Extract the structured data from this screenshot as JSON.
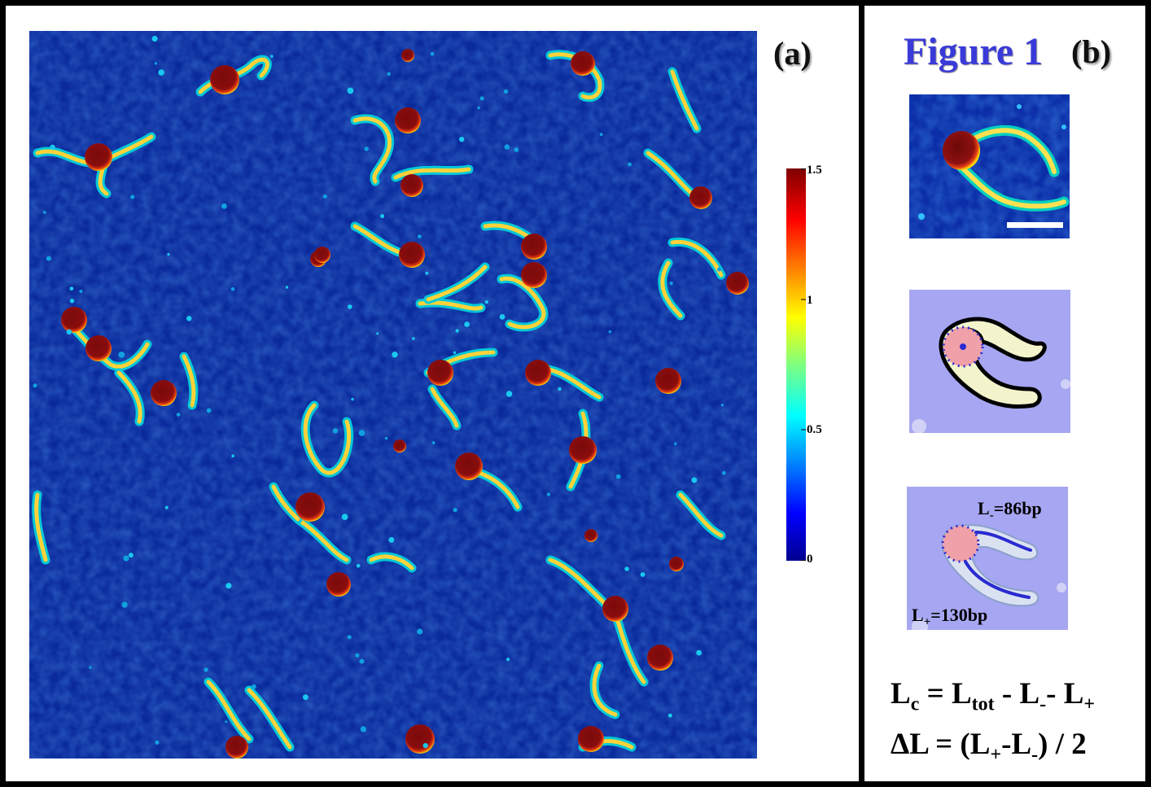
{
  "figure_title": "Figure 1",
  "panel_a": {
    "label": "(a)",
    "colorbar": {
      "ticks": [
        "1.5",
        "1",
        "0.5",
        "0"
      ]
    }
  },
  "panel_b": {
    "label": "(b)",
    "length_labels": {
      "l_minus": {
        "main": "L",
        "sub": "-",
        "value": "=86bp"
      },
      "l_plus": {
        "main": "L",
        "sub": "+",
        "value": "=130bp"
      }
    },
    "equation_1": {
      "lhs": "L",
      "lhs_sub": "c",
      "eq": " = ",
      "t1": "L",
      "t1_sub": "tot",
      "minus1": " - ",
      "t2": "L",
      "t2_sub": "-",
      "minus2": "- ",
      "t3": "L",
      "t3_sub": "+"
    },
    "equation_2": {
      "lhs": "ΔL",
      "eq": " = (",
      "t1": "L",
      "t1_sub": "+",
      "minus": "-",
      "t2": "L",
      "t2_sub": "-",
      "tail": ") / 2"
    }
  },
  "colors": {
    "title_blue": "#3a3ad8",
    "afm_background": "#0a2a9c",
    "colorbar_low": "#00008f",
    "colorbar_high": "#7f0000"
  }
}
